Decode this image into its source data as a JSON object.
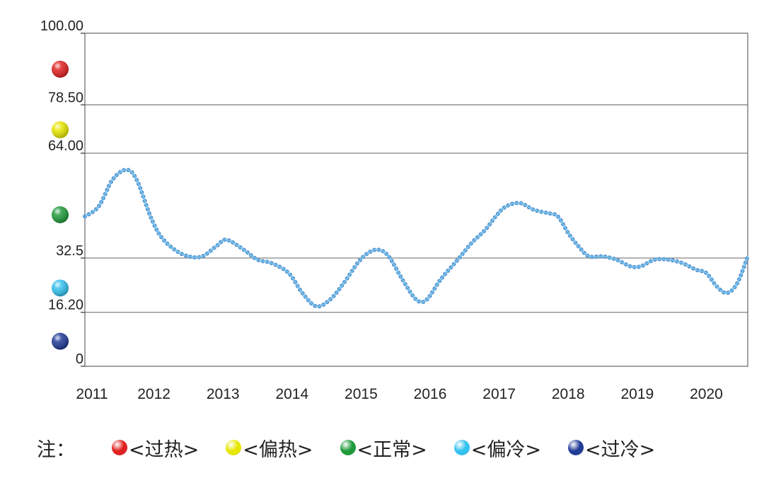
{
  "chart_data": {
    "type": "line",
    "x_ticks": [
      "2011",
      "2012",
      "2013",
      "2014",
      "2015",
      "2016",
      "2017",
      "2018",
      "2019",
      "2020"
    ],
    "y_tick_labels": [
      "0",
      "16.20",
      "32.5",
      "64.00",
      "78.50",
      "100.00"
    ],
    "y_tick_values": [
      0,
      16.2,
      32.5,
      64.0,
      78.5,
      100.0
    ],
    "ylim": [
      0,
      100
    ],
    "xlim": [
      2011,
      2020.6
    ],
    "grid": "horizontal",
    "series": [
      {
        "color": "#5b9bd5",
        "x": [
          2011.0,
          2011.2,
          2011.4,
          2011.6,
          2011.75,
          2011.95,
          2012.1,
          2012.3,
          2012.5,
          2012.7,
          2012.9,
          2013.05,
          2013.3,
          2013.5,
          2013.7,
          2013.95,
          2014.15,
          2014.35,
          2014.55,
          2014.75,
          2014.95,
          2015.1,
          2015.25,
          2015.4,
          2015.6,
          2015.8,
          2015.95,
          2016.15,
          2016.4,
          2016.6,
          2016.8,
          2016.95,
          2017.1,
          2017.3,
          2017.5,
          2017.7,
          2017.85,
          2018.0,
          2018.15,
          2018.3,
          2018.5,
          2018.7,
          2018.9,
          2019.05,
          2019.25,
          2019.45,
          2019.65,
          2019.85,
          2020.0,
          2020.15,
          2020.3,
          2020.45,
          2020.6
        ],
        "y": [
          45,
          48,
          56,
          59,
          56,
          45,
          39,
          35,
          33,
          33,
          36,
          38,
          35,
          32,
          31,
          28,
          22,
          18,
          20,
          25,
          31,
          34,
          35,
          33,
          26,
          20,
          20,
          26,
          32,
          37,
          41,
          45,
          48,
          49,
          47,
          46,
          45,
          40,
          36,
          33,
          33,
          32,
          30,
          30,
          32,
          32,
          31,
          29,
          28,
          24,
          22,
          25,
          33
        ]
      }
    ],
    "ordinal_markers": [
      {
        "y": 89.2,
        "color": "#e02020",
        "label": "过热"
      },
      {
        "y": 71.0,
        "color": "#e6e600",
        "label": "偏热"
      },
      {
        "y": 45.5,
        "color": "#1f9a3a",
        "label": "正常"
      },
      {
        "y": 23.5,
        "color": "#33c1ee",
        "label": "偏冷"
      },
      {
        "y": 7.5,
        "color": "#203a96",
        "label": "过冷"
      }
    ]
  },
  "legend": {
    "note": "注：",
    "items": [
      {
        "label": "<过热>",
        "color": "#e02020"
      },
      {
        "label": "<偏热>",
        "color": "#e6e600"
      },
      {
        "label": "<正常>",
        "color": "#1f9a3a"
      },
      {
        "label": "<偏冷>",
        "color": "#33c1ee"
      },
      {
        "label": "<过冷>",
        "color": "#203a96"
      }
    ]
  }
}
